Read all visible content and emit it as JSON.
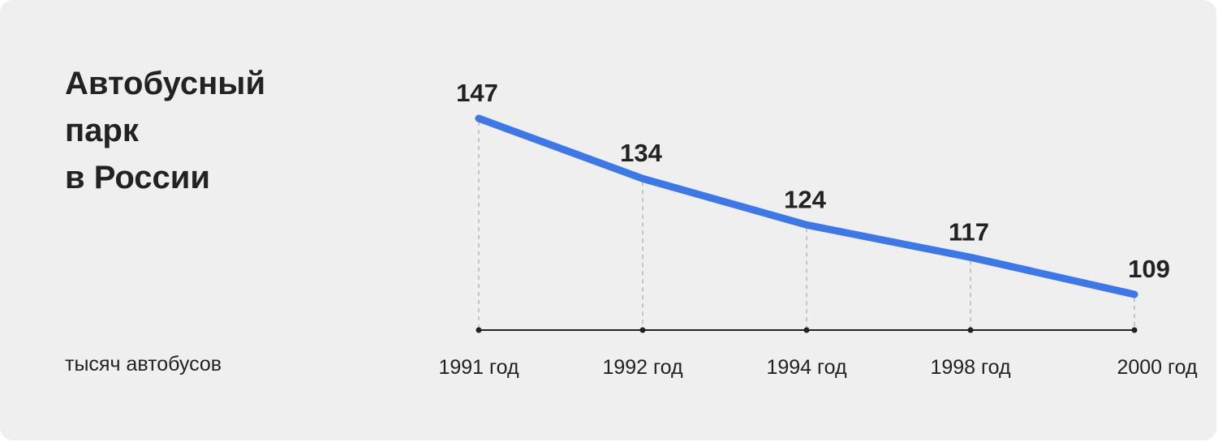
{
  "title_lines": [
    "Автобусный",
    "парк",
    "в России"
  ],
  "unit_label": "тысяч автобусов",
  "colors": {
    "background": "#efefef",
    "line": "#3d78e8",
    "text": "#222222",
    "axis": "#222222",
    "guide": "#b5b5b5"
  },
  "chart_data": {
    "type": "line",
    "title": "Автобусный парк в России",
    "ylabel": "тысяч автобусов",
    "categories": [
      "1991 год",
      "1992 год",
      "1994 год",
      "1998 год",
      "2000 год"
    ],
    "series": [
      {
        "values": [
          147,
          134,
          124,
          117,
          109
        ]
      }
    ],
    "data_labels": [
      "147",
      "134",
      "124",
      "117",
      "109"
    ],
    "ylim": [
      100,
      150
    ],
    "grid": false,
    "legend": "none"
  }
}
